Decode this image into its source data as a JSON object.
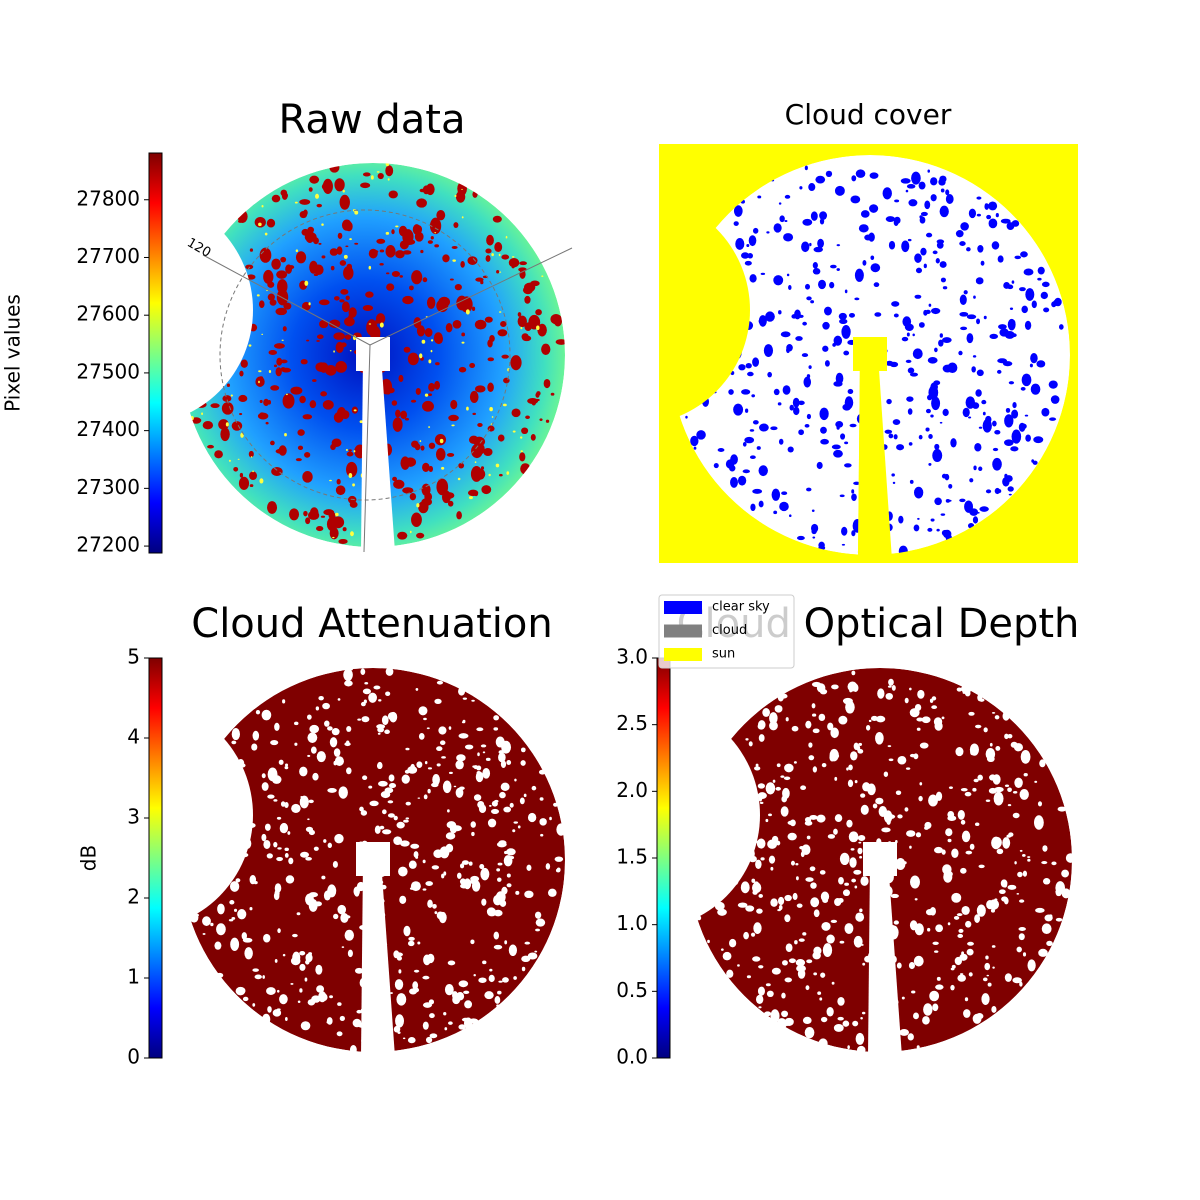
{
  "chart_data": [
    {
      "type": "image",
      "title": "Raw data",
      "annotations": [
        "120"
      ],
      "colorbar": {
        "label": "Pixel values",
        "lim": [
          27188,
          27881
        ],
        "ticks": [
          27200,
          27300,
          27400,
          27500,
          27600,
          27700,
          27800
        ]
      }
    },
    {
      "type": "mask",
      "title": "Cloud cover",
      "legend": [
        {
          "name": "clear sky",
          "color": "#0000ff"
        },
        {
          "name": "cloud",
          "color": "#808080"
        },
        {
          "name": "sun",
          "color": "#ffff00"
        }
      ]
    },
    {
      "type": "image",
      "title": "Cloud Attenuation",
      "colorbar": {
        "label": "dB",
        "lim": [
          0,
          5
        ],
        "ticks": [
          0,
          1,
          2,
          3,
          4,
          5
        ]
      }
    },
    {
      "type": "image",
      "title": "Cloud Optical Depth",
      "colorbar": {
        "lim": [
          0,
          3
        ],
        "ticks": [
          {
            "value": 0,
            "label": "0.0"
          },
          0.5,
          {
            "value": 1,
            "label": "1.0"
          },
          1.5,
          {
            "value": 2,
            "label": "2.0"
          },
          2.5,
          {
            "value": 3,
            "label": "3.0"
          }
        ]
      }
    }
  ]
}
